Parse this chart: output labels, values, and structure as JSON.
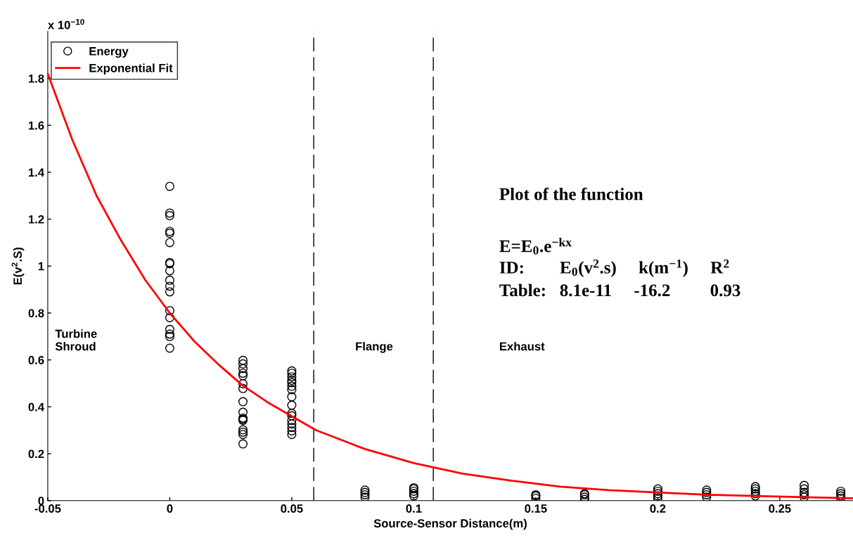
{
  "chart_data": {
    "type": "scatter",
    "xlabel": "Source-Sensor Distance(m)",
    "ylabel": "E(v$^{2}$.S)",
    "xlim": [
      -0.05,
      0.28
    ],
    "xticks": [
      -0.05,
      0,
      0.05,
      0.1,
      0.15,
      0.2,
      0.25
    ],
    "ylim": [
      0,
      2.0
    ],
    "yticks": [
      0,
      0.2,
      0.4,
      0.6,
      0.8,
      1,
      1.2,
      1.4,
      1.6,
      1.8
    ],
    "grid": false,
    "legend": "top left",
    "series": [
      {
        "name": "Energy",
        "marker": "circle",
        "color": "#000000",
        "x": [
          0,
          0,
          0,
          0,
          0,
          0,
          0,
          0,
          0,
          0,
          0,
          0,
          0,
          0,
          0,
          0,
          0,
          0,
          0.03,
          0.03,
          0.03,
          0.03,
          0.03,
          0.03,
          0.03,
          0.03,
          0.03,
          0.03,
          0.03,
          0.03,
          0.03,
          0.03,
          0.03,
          0.03,
          0.05,
          0.05,
          0.05,
          0.05,
          0.05,
          0.05,
          0.05,
          0.05,
          0.05,
          0.05,
          0.05,
          0.05,
          0.05,
          0.05,
          0.05,
          0.05,
          0.08,
          0.08,
          0.08,
          0.08,
          0.1,
          0.1,
          0.1,
          0.1,
          0.1,
          0.15,
          0.15,
          0.15,
          0.17,
          0.17,
          0.17,
          0.17,
          0.2,
          0.2,
          0.2,
          0.2,
          0.2,
          0.22,
          0.22,
          0.22,
          0.22,
          0.24,
          0.24,
          0.24,
          0.24,
          0.24,
          0.26,
          0.26,
          0.26,
          0.26,
          0.26,
          0.275,
          0.275,
          0.275,
          0.275
        ],
        "values": [
          1.34,
          1.226,
          1.215,
          1.148,
          1.14,
          1.1,
          1.015,
          1.01,
          0.98,
          0.94,
          0.914,
          0.89,
          0.81,
          0.78,
          0.73,
          0.71,
          0.7,
          0.65,
          0.598,
          0.583,
          0.563,
          0.543,
          0.533,
          0.498,
          0.478,
          0.422,
          0.377,
          0.352,
          0.347,
          0.342,
          0.302,
          0.292,
          0.282,
          0.242,
          0.553,
          0.543,
          0.528,
          0.513,
          0.503,
          0.488,
          0.473,
          0.443,
          0.407,
          0.372,
          0.362,
          0.342,
          0.327,
          0.312,
          0.297,
          0.282,
          0.015,
          0.025,
          0.035,
          0.045,
          0.02,
          0.03,
          0.04,
          0.05,
          0.055,
          0.01,
          0.02,
          0.025,
          0.005,
          0.015,
          0.025,
          0.03,
          0.01,
          0.02,
          0.03,
          0.04,
          0.05,
          0.015,
          0.025,
          0.035,
          0.045,
          0.02,
          0.03,
          0.04,
          0.05,
          0.06,
          0.015,
          0.025,
          0.035,
          0.05,
          0.065,
          0.01,
          0.02,
          0.03,
          0.04
        ]
      },
      {
        "name": "Exponential Fit",
        "type": "line",
        "marker": "none",
        "line_style": "solid",
        "color": "#ff0000",
        "x": [
          -0.05,
          -0.04,
          -0.03,
          -0.02,
          -0.01,
          0,
          0.01,
          0.02,
          0.03,
          0.04,
          0.05,
          0.06,
          0.07,
          0.08,
          0.1,
          0.12,
          0.14,
          0.16,
          0.18,
          0.2,
          0.22,
          0.24,
          0.26,
          0.28
        ],
        "values": [
          1.82,
          1.54,
          1.3,
          1.11,
          0.94,
          0.8,
          0.68,
          0.58,
          0.49,
          0.42,
          0.36,
          0.3,
          0.26,
          0.22,
          0.16,
          0.115,
          0.085,
          0.06,
          0.045,
          0.035,
          0.025,
          0.02,
          0.015,
          0.01
        ]
      }
    ],
    "ref_lines": [
      {
        "axis": "x",
        "value": 0.059,
        "color": "#000000",
        "line_style": "dashed"
      },
      {
        "axis": "x",
        "value": 0.108,
        "color": "#000000",
        "line_style": "dashed"
      }
    ],
    "annotations": [
      "x 10$^{−10}$",
      "Turbine\nShroud",
      "Flange",
      "Exhaust",
      "Plot of the function",
      "E=E$_{0}$.e$^{−kx}$",
      "ID:        E$_{0}$(v$^{2}$.s)     k(m$^{−1}$)     R$^{2}$",
      "Table:   8.1e-11     -16.2         0.93"
    ]
  }
}
